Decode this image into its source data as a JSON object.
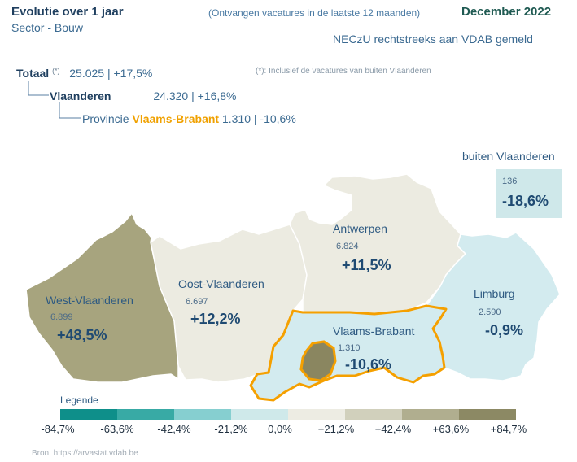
{
  "header": {
    "title": "Evolutie over 1 jaar",
    "subtitle": "Sector - Bouw",
    "note": "(Ontvangen vacatures in de laatste 12 maanden)",
    "date": "December 2022",
    "source_label": "NECzU rechtstreeks aan VDAB gemeld"
  },
  "summary": {
    "total_label": "Totaal",
    "total_marker": "(*)",
    "total_value": "25.025 | +17,5%",
    "footnote": "(*): Inclusief de vacatures van buiten Vlaanderen",
    "flanders_label": "Vlaanderen",
    "flanders_value": "24.320 | +16,8%",
    "province_prefix": "Provincie",
    "province_name": "Vlaams-Brabant",
    "province_value": "1.310 | -10,6%"
  },
  "outside": {
    "label": "buiten Vlaanderen",
    "count": "136",
    "pct": "-18,6%",
    "pct_num": -18.6
  },
  "regions": [
    {
      "id": "west",
      "name": "West-Vlaanderen",
      "count": "6.899",
      "pct": "+48,5%",
      "pct_num": 48.5
    },
    {
      "id": "oost",
      "name": "Oost-Vlaanderen",
      "count": "6.697",
      "pct": "+12,2%",
      "pct_num": 12.2
    },
    {
      "id": "antwerpen",
      "name": "Antwerpen",
      "count": "6.824",
      "pct": "+11,5%",
      "pct_num": 11.5
    },
    {
      "id": "brabant",
      "name": "Vlaams-Brabant",
      "count": "1.310",
      "pct": "-10,6%",
      "pct_num": -10.6
    },
    {
      "id": "limburg",
      "name": "Limburg",
      "count": "2.590",
      "pct": "-0,9%",
      "pct_num": -0.9
    }
  ],
  "colors": {
    "west": "#a7a47e",
    "oost": "#ecebe1",
    "antwerpen": "#ecebe1",
    "brabant": "#d3ebef",
    "limburg": "#d3ebef",
    "brussels": "#8a8660",
    "highlight": "#f5a000"
  },
  "legend": {
    "title": "Legende",
    "colors": [
      "#0e8f8a",
      "#38aaa5",
      "#86cfd0",
      "#cfe9ea",
      "#edece3",
      "#d1d0bc",
      "#b0ae8f",
      "#8c8964"
    ],
    "ticks": [
      "-84,7%",
      "-63,6%",
      "-42,4%",
      "-21,2%",
      "0,0%",
      "+21,2%",
      "+42,4%",
      "+63,6%",
      "+84,7%"
    ]
  },
  "bron": "Bron: https://arvastat.vdab.be"
}
